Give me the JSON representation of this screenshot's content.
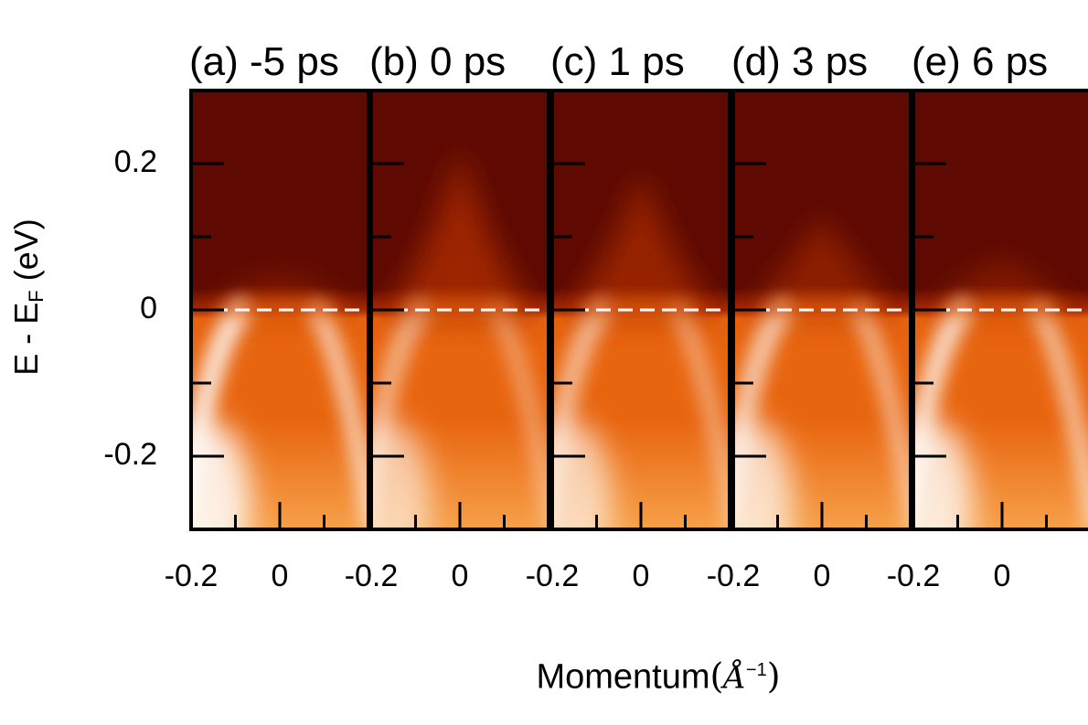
{
  "chart_data": {
    "type": "heatmap",
    "colormap": [
      "#ffffff",
      "#f7a04a",
      "#e8650f",
      "#a82a05",
      "#5e0a02"
    ],
    "panels": [
      {
        "title": "(a) -5 ps",
        "delay_ps": -5
      },
      {
        "title": "(b) 0 ps",
        "delay_ps": 0
      },
      {
        "title": "(c) 1 ps",
        "delay_ps": 1
      },
      {
        "title": "(d) 3 ps",
        "delay_ps": 3
      },
      {
        "title": "(e) 6 ps",
        "delay_ps": 6
      }
    ],
    "y_axis": {
      "label": "E - E",
      "label_subscript": "F",
      "label_unit": "(eV)",
      "ticks": [
        "0.2",
        "0",
        "-0.2"
      ],
      "range": [
        -0.3,
        0.3
      ]
    },
    "x_axis": {
      "label": "Momentum",
      "label_unit": "Å",
      "label_unit_exponent": "−1",
      "ticks": [
        "-0.2",
        "0"
      ],
      "range": [
        -0.2,
        0.2
      ]
    },
    "reference_line": {
      "y": 0,
      "style": "dashed",
      "color": "#ffffff"
    }
  }
}
